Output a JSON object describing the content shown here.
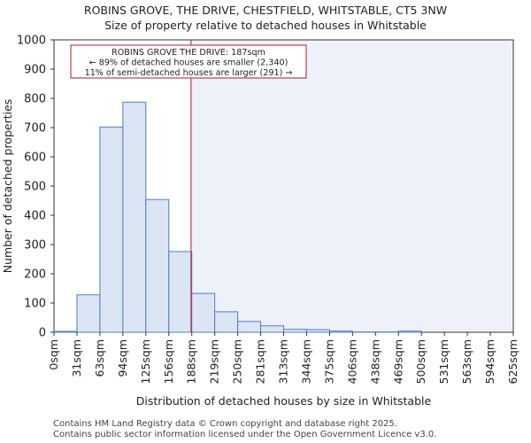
{
  "chart_data": {
    "type": "bar",
    "title_line1": "ROBINS GROVE, THE DRIVE, CHESTFIELD, WHITSTABLE, CT5 3NW",
    "title_line2": "Size of property relative to detached houses in Whitstable",
    "xlabel": "Distribution of detached houses by size in Whitstable",
    "ylabel": "Number of detached properties",
    "ylim": [
      0,
      1000
    ],
    "yticks": [
      0,
      100,
      200,
      300,
      400,
      500,
      600,
      700,
      800,
      900,
      1000
    ],
    "bin_edges": [
      "0sqm",
      "31sqm",
      "63sqm",
      "94sqm",
      "125sqm",
      "156sqm",
      "188sqm",
      "219sqm",
      "250sqm",
      "281sqm",
      "313sqm",
      "344sqm",
      "375sqm",
      "406sqm",
      "438sqm",
      "469sqm",
      "500sqm",
      "531sqm",
      "563sqm",
      "594sqm",
      "625sqm"
    ],
    "values": [
      3,
      128,
      702,
      787,
      454,
      276,
      133,
      70,
      37,
      22,
      10,
      9,
      4,
      1,
      1,
      4,
      0,
      0,
      0,
      0
    ],
    "marker_value": 187,
    "marker_label": "ROBINS GROVE THE DRIVE: 187sqm",
    "annotation_lines": [
      "ROBINS GROVE THE DRIVE: 187sqm",
      "← 89% of detached houses are smaller (2,340)",
      "11% of semi-detached houses are larger (291) →"
    ],
    "colors": {
      "bar_fill": "#dbe5f4",
      "bar_stroke": "#4f7fbf",
      "marker": "#b0182b",
      "shade": "#eef1fa"
    }
  },
  "footer": {
    "line1": "Contains HM Land Registry data © Crown copyright and database right 2025.",
    "line2": "Contains public sector information licensed under the Open Government Licence v3.0."
  }
}
